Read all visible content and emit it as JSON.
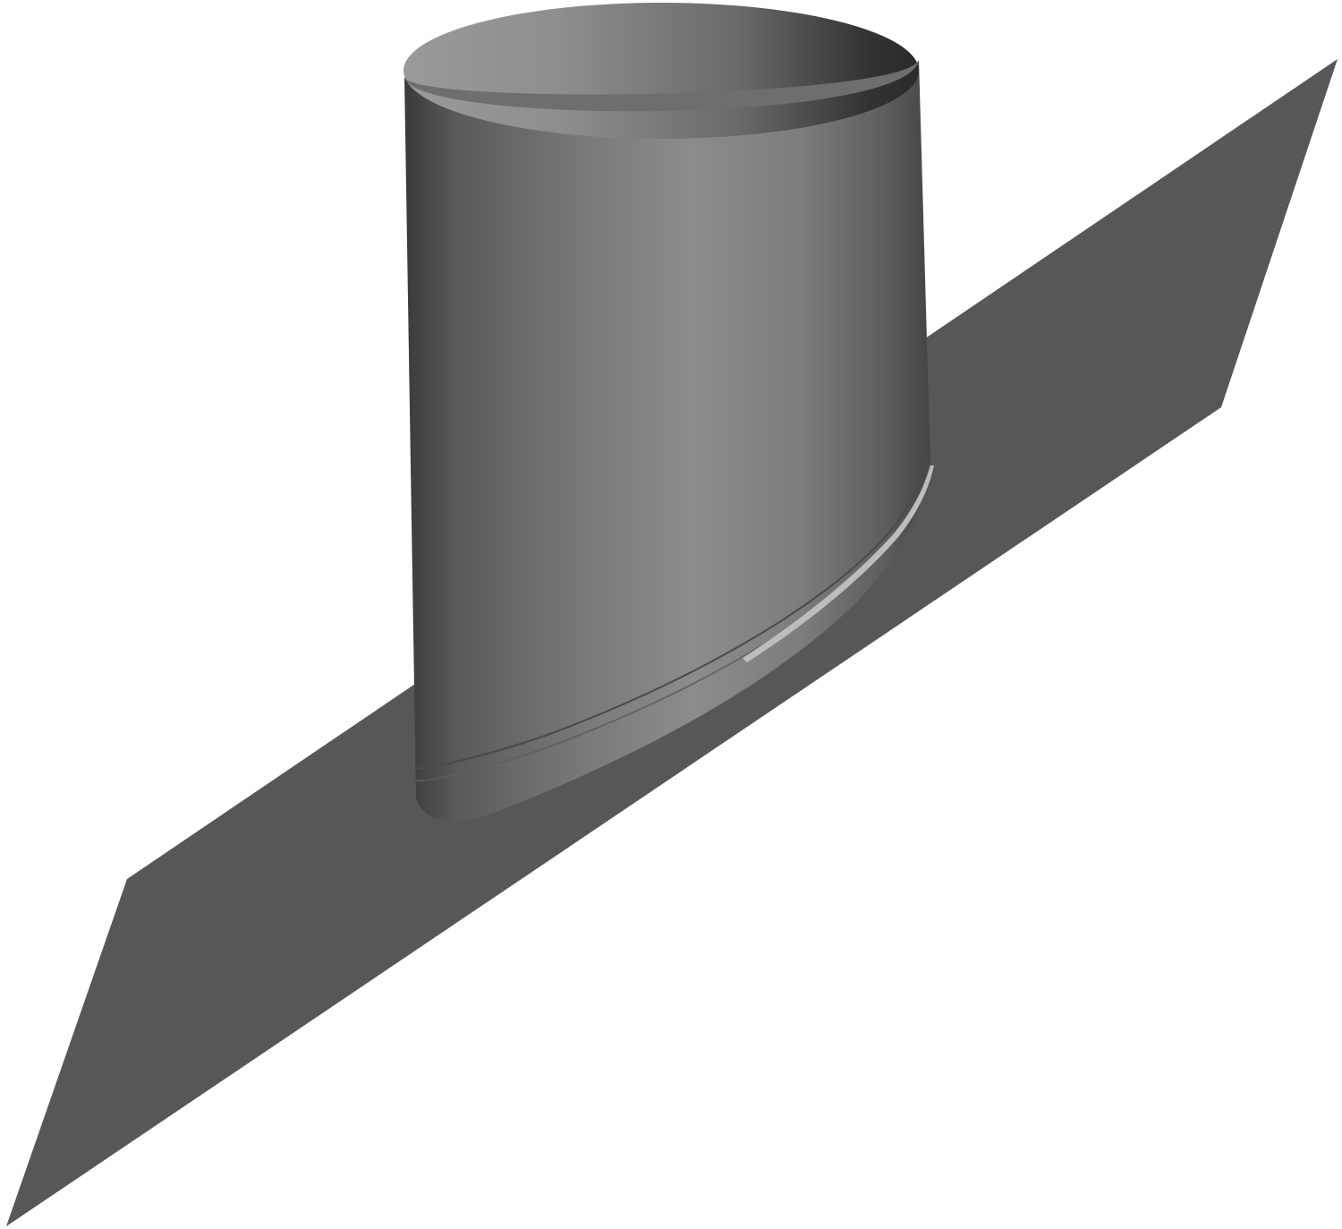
{
  "image": {
    "subject": "roof-flashing-pipe-collar",
    "colors": {
      "background": "#ffffff",
      "flashing_plate": "#575757",
      "pipe_dark": "#3c3c3c",
      "pipe_mid": "#808080",
      "pipe_light": "#8c8c8c",
      "pipe_interior_dark": "#2e2e2e",
      "pipe_interior_light": "#9a9a9a",
      "base_highlight": "#bdbdbd"
    }
  }
}
